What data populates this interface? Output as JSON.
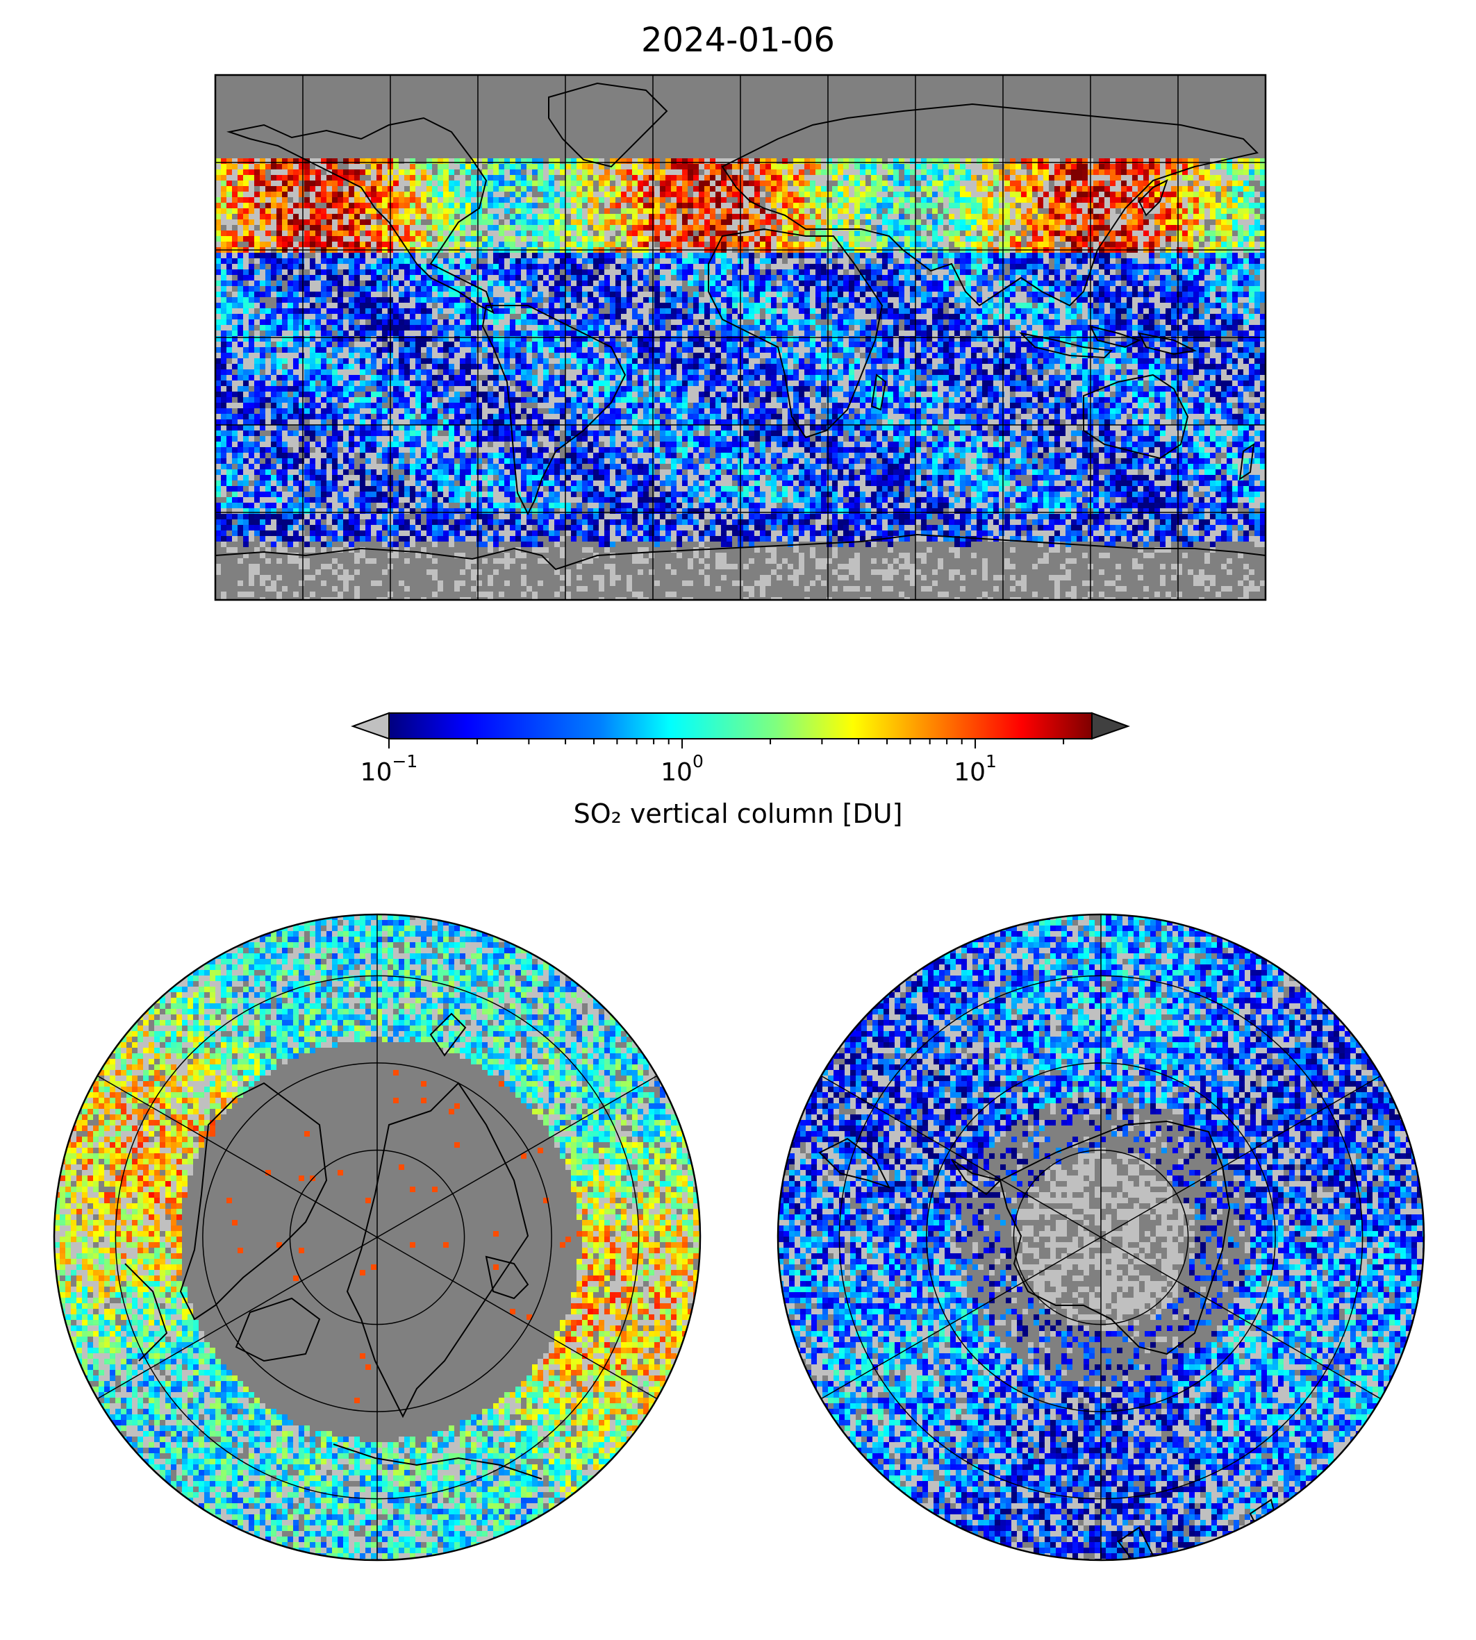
{
  "title": "2024-01-06",
  "colorbar": {
    "label": "SO₂ vertical column [DU]",
    "ticks": [
      {
        "base": "10",
        "exp": "−1",
        "value": 0.1
      },
      {
        "base": "10",
        "exp": "0",
        "value": 1
      },
      {
        "base": "10",
        "exp": "1",
        "value": 10
      }
    ],
    "scale": "log",
    "range": [
      0.1,
      25
    ],
    "colormap": [
      "#00007f",
      "#0000ff",
      "#007fff",
      "#00ffff",
      "#7fff7f",
      "#ffff00",
      "#ff7f00",
      "#ff0000",
      "#7f0000"
    ],
    "under_color": "#c0c0c0",
    "over_color": "#404040"
  },
  "colors": {
    "land_nodata": "#808080",
    "low_value": "#c0c0c0"
  },
  "chart_data": [
    {
      "type": "heatmap",
      "projection": "plate-carree",
      "region": "global",
      "grid_lon_step": 30,
      "grid_lat_step": 30
    },
    {
      "type": "heatmap",
      "projection": "north-polar-stereographic",
      "region": "northern hemisphere"
    },
    {
      "type": "heatmap",
      "projection": "south-polar-stereographic",
      "region": "southern hemisphere"
    }
  ]
}
